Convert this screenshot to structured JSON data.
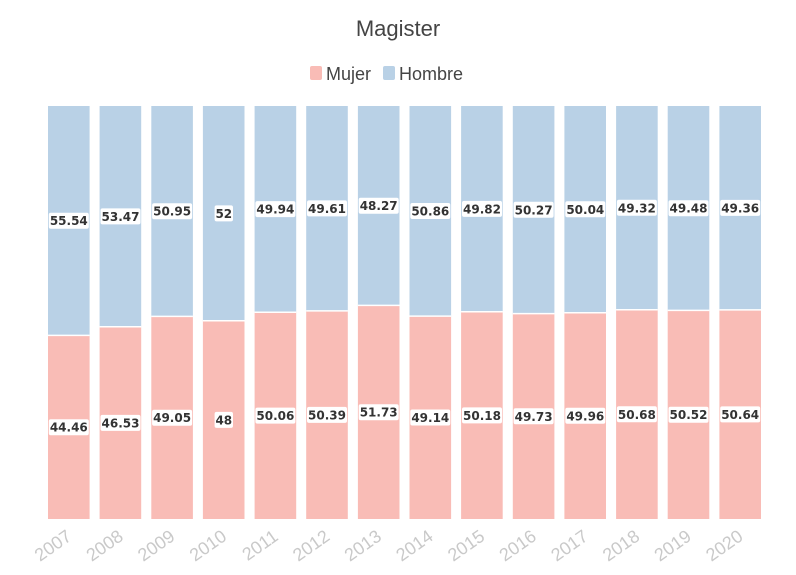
{
  "chart_data": {
    "type": "bar",
    "stacked": true,
    "normalized": true,
    "title": "Magister",
    "xlabel": "",
    "ylabel": "",
    "ylim": [
      0,
      100
    ],
    "grid": false,
    "legend_position": "top-center",
    "categories": [
      "2007",
      "2008",
      "2009",
      "2010",
      "2011",
      "2012",
      "2013",
      "2014",
      "2015",
      "2016",
      "2017",
      "2018",
      "2019",
      "2020"
    ],
    "series": [
      {
        "name": "Mujer",
        "color": "#f9bcb6",
        "values": [
          44.46,
          46.53,
          49.05,
          48,
          50.06,
          50.39,
          51.73,
          49.14,
          50.18,
          49.73,
          49.96,
          50.68,
          50.52,
          50.64
        ]
      },
      {
        "name": "Hombre",
        "color": "#b9d1e6",
        "values": [
          55.54,
          53.47,
          50.95,
          52,
          49.94,
          49.61,
          48.27,
          50.86,
          49.82,
          50.27,
          50.04,
          49.32,
          49.48,
          49.36
        ]
      }
    ]
  }
}
